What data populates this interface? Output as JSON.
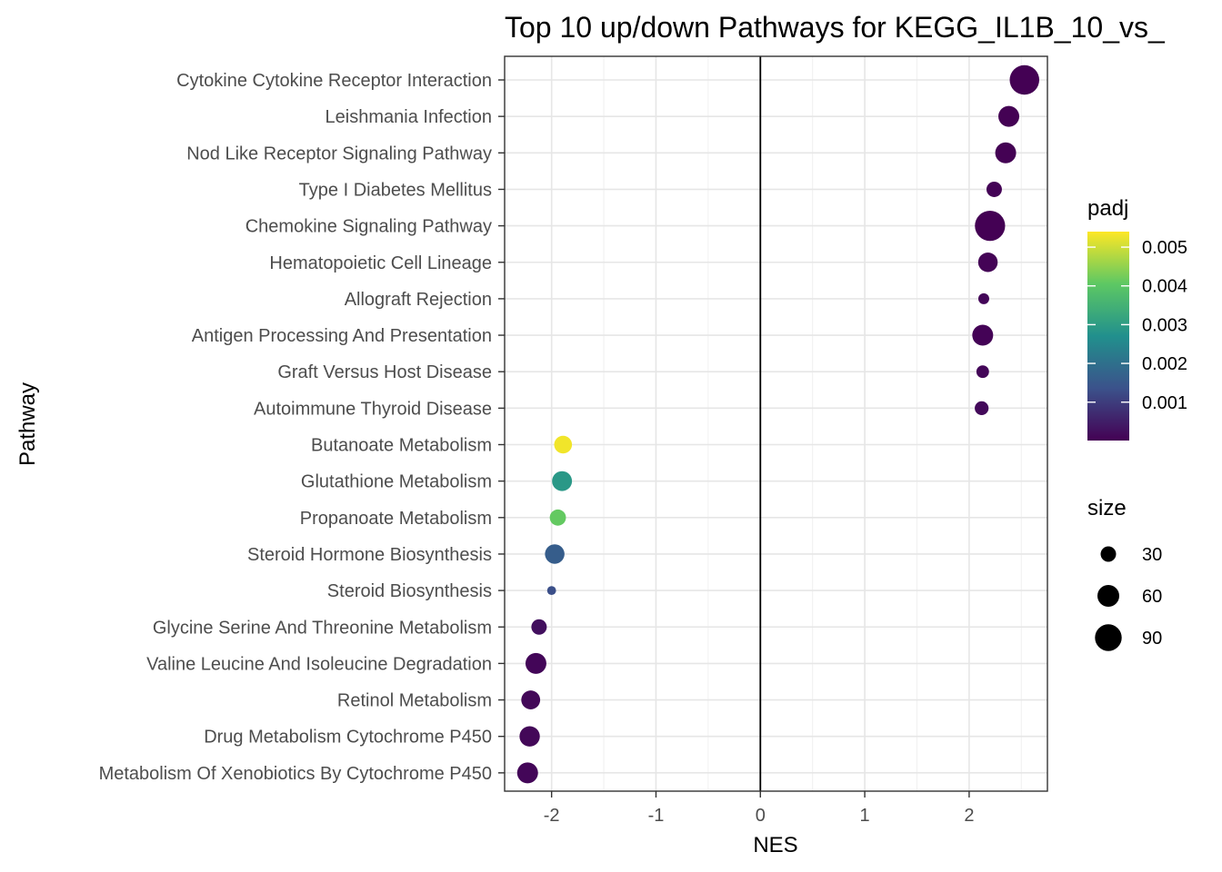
{
  "chart_data": {
    "type": "scatter",
    "title": "Top 10 up/down Pathways for  KEGG_IL1B_10_vs_",
    "xlabel": "NES",
    "ylabel": "Pathway",
    "xlim": [
      -2.45,
      2.75
    ],
    "xticks": [
      "-2",
      "-1",
      "0",
      "1",
      "2"
    ],
    "xtick_values": [
      -2,
      -1,
      0,
      1,
      2
    ],
    "vline_at": 0,
    "grid": true,
    "legend_position": "right",
    "color_legend": {
      "title": "padj",
      "min": 1e-05,
      "max": 0.0054,
      "ticks": [
        "0.005",
        "0.004",
        "0.003",
        "0.002",
        "0.001"
      ],
      "tick_values": [
        0.005,
        0.004,
        0.003,
        0.002,
        0.001
      ],
      "colormap": [
        "#440154",
        "#3b528b",
        "#21908d",
        "#5dc863",
        "#fde725"
      ]
    },
    "size_legend": {
      "title": "size",
      "labels": [
        "30",
        "60",
        "90"
      ],
      "values": [
        30,
        60,
        90
      ]
    },
    "points": [
      {
        "pathway": "Cytokine Cytokine Receptor Interaction",
        "nes": 2.53,
        "padj": 1e-05,
        "size": 110
      },
      {
        "pathway": "Leishmania Infection",
        "nes": 2.38,
        "padj": 2e-05,
        "size": 55
      },
      {
        "pathway": "Nod Like Receptor Signaling Pathway",
        "nes": 2.35,
        "padj": 2e-05,
        "size": 55
      },
      {
        "pathway": "Type I Diabetes Mellitus",
        "nes": 2.24,
        "padj": 5e-05,
        "size": 30
      },
      {
        "pathway": "Chemokine Signaling Pathway",
        "nes": 2.2,
        "padj": 1e-05,
        "size": 115
      },
      {
        "pathway": "Hematopoietic Cell Lineage",
        "nes": 2.18,
        "padj": 5e-05,
        "size": 48
      },
      {
        "pathway": "Allograft Rejection",
        "nes": 2.14,
        "padj": 0.0001,
        "size": 15
      },
      {
        "pathway": "Antigen Processing And Presentation",
        "nes": 2.13,
        "padj": 5e-05,
        "size": 55
      },
      {
        "pathway": "Graft Versus Host Disease",
        "nes": 2.13,
        "padj": 0.0001,
        "size": 20
      },
      {
        "pathway": "Autoimmune Thyroid Disease",
        "nes": 2.12,
        "padj": 0.00015,
        "size": 24
      },
      {
        "pathway": "Butanoate Metabolism",
        "nes": -1.89,
        "padj": 0.0053,
        "size": 40
      },
      {
        "pathway": "Glutathione Metabolism",
        "nes": -1.9,
        "padj": 0.0029,
        "size": 50
      },
      {
        "pathway": "Propanoate Metabolism",
        "nes": -1.94,
        "padj": 0.0041,
        "size": 33
      },
      {
        "pathway": "Steroid Hormone Biosynthesis",
        "nes": -1.97,
        "padj": 0.0016,
        "size": 48
      },
      {
        "pathway": "Steroid Biosynthesis",
        "nes": -2.0,
        "padj": 0.0013,
        "size": 10
      },
      {
        "pathway": "Glycine Serine And Threonine Metabolism",
        "nes": -2.12,
        "padj": 0.00025,
        "size": 30
      },
      {
        "pathway": "Valine Leucine And Isoleucine Degradation",
        "nes": -2.15,
        "padj": 0.0001,
        "size": 55
      },
      {
        "pathway": "Retinol Metabolism",
        "nes": -2.2,
        "padj": 0.00012,
        "size": 45
      },
      {
        "pathway": "Drug Metabolism Cytochrome P450",
        "nes": -2.21,
        "padj": 0.00012,
        "size": 52
      },
      {
        "pathway": "Metabolism Of Xenobiotics By Cytochrome P450",
        "nes": -2.23,
        "padj": 0.0001,
        "size": 55
      }
    ]
  }
}
